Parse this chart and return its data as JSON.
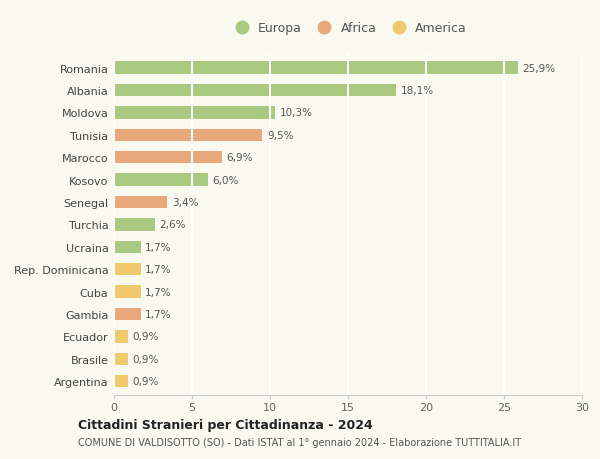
{
  "countries": [
    "Romania",
    "Albania",
    "Moldova",
    "Tunisia",
    "Marocco",
    "Kosovo",
    "Senegal",
    "Turchia",
    "Ucraina",
    "Rep. Dominicana",
    "Cuba",
    "Gambia",
    "Ecuador",
    "Brasile",
    "Argentina"
  ],
  "values": [
    25.9,
    18.1,
    10.3,
    9.5,
    6.9,
    6.0,
    3.4,
    2.6,
    1.7,
    1.7,
    1.7,
    1.7,
    0.9,
    0.9,
    0.9
  ],
  "labels": [
    "25,9%",
    "18,1%",
    "10,3%",
    "9,5%",
    "6,9%",
    "6,0%",
    "3,4%",
    "2,6%",
    "1,7%",
    "1,7%",
    "1,7%",
    "1,7%",
    "0,9%",
    "0,9%",
    "0,9%"
  ],
  "continents": [
    "Europa",
    "Europa",
    "Europa",
    "Africa",
    "Africa",
    "Europa",
    "Africa",
    "Europa",
    "Europa",
    "America",
    "America",
    "Africa",
    "America",
    "America",
    "America"
  ],
  "colors": {
    "Europa": "#a8c97f",
    "Africa": "#e8a87c",
    "America": "#f0c96e"
  },
  "legend_labels": [
    "Europa",
    "Africa",
    "America"
  ],
  "legend_colors": [
    "#a8c97f",
    "#e8a87c",
    "#f0c96e"
  ],
  "title": "Cittadini Stranieri per Cittadinanza - 2024",
  "subtitle": "COMUNE DI VALDISOTTO (SO) - Dati ISTAT al 1° gennaio 2024 - Elaborazione TUTTITALIA.IT",
  "xlim": [
    0,
    30
  ],
  "xticks": [
    0,
    5,
    10,
    15,
    20,
    25,
    30
  ],
  "background_color": "#f9f9f0",
  "grid_color": "#ffffff",
  "bar_height": 0.55
}
